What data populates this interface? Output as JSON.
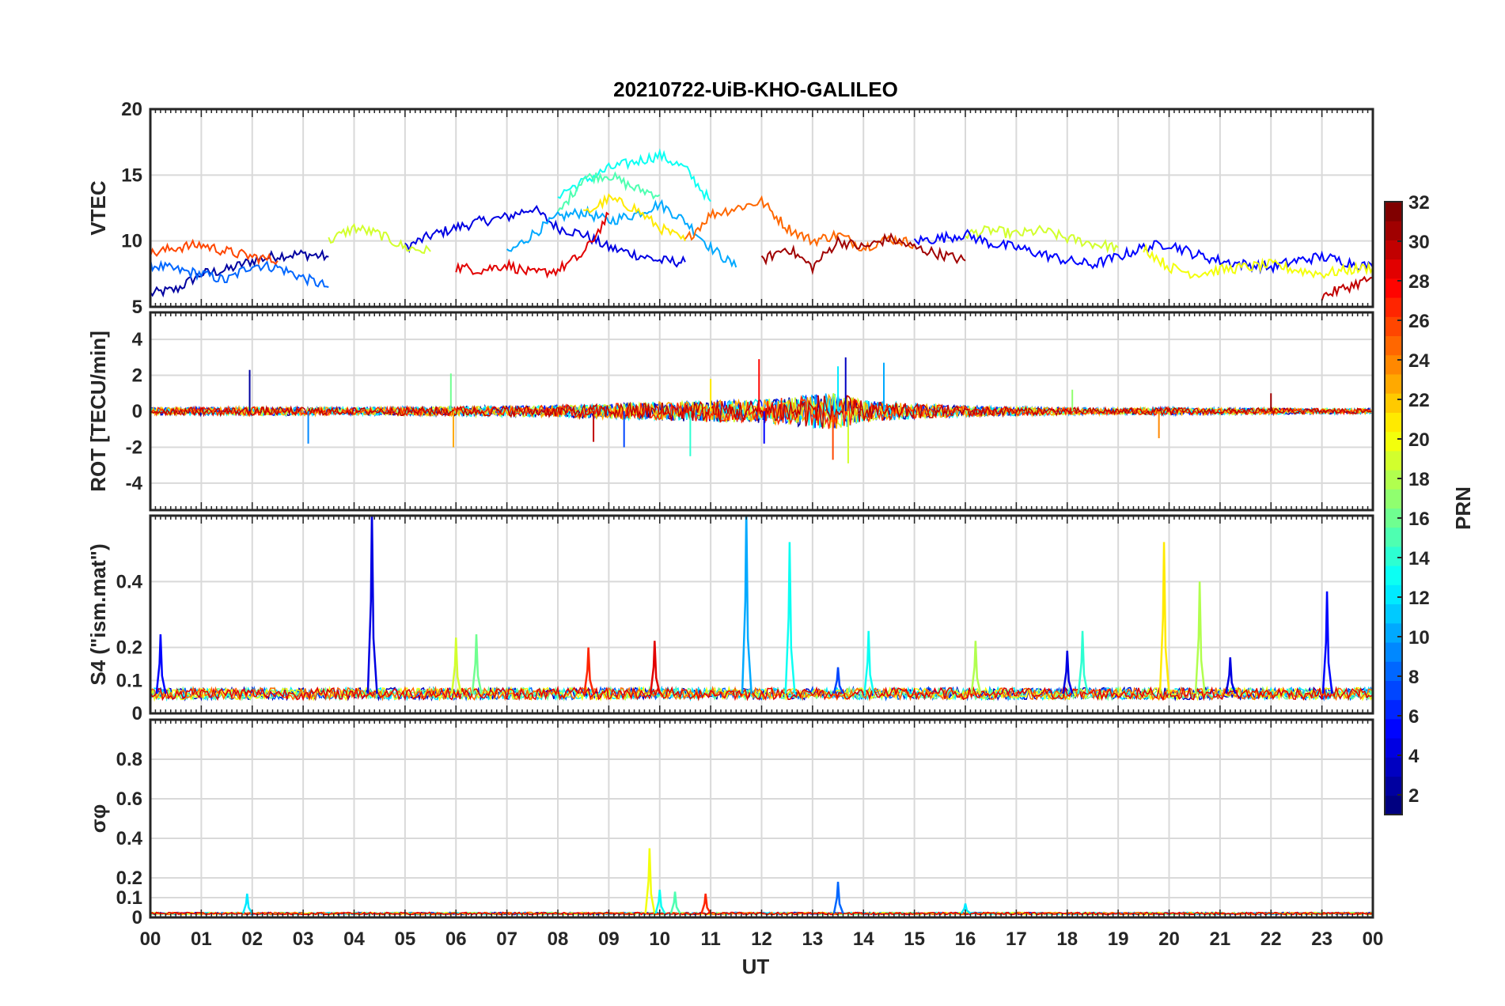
{
  "title": "20210722-UiB-KHO-GALILEO",
  "xlabel": "UT",
  "x_ticks": [
    "00",
    "01",
    "02",
    "03",
    "04",
    "05",
    "06",
    "07",
    "08",
    "09",
    "10",
    "11",
    "12",
    "13",
    "14",
    "15",
    "16",
    "17",
    "18",
    "19",
    "20",
    "21",
    "22",
    "23",
    "00"
  ],
  "colorbar": {
    "label": "PRN",
    "range": [
      1,
      32
    ],
    "ticks": [
      "2",
      "4",
      "6",
      "8",
      "10",
      "12",
      "14",
      "16",
      "18",
      "20",
      "22",
      "24",
      "26",
      "28",
      "30",
      "32"
    ],
    "colormap": "jet"
  },
  "chart_data": [
    {
      "type": "line",
      "panel": "VTEC",
      "ylabel": "VTEC",
      "ylim": [
        5,
        20
      ],
      "yticks": [
        "5",
        "10",
        "15",
        "20"
      ],
      "x_unit": "hours UT",
      "series": [
        {
          "prn": 2,
          "x": [
            0,
            0.5,
            1,
            1.5,
            2,
            2.5,
            3,
            3.5
          ],
          "y": [
            6.0,
            6.3,
            7.5,
            7.8,
            8.5,
            8.9,
            9.0,
            8.8
          ]
        },
        {
          "prn": 4,
          "x": [
            5,
            5.5,
            6,
            6.5,
            7,
            7.5,
            8,
            8.5,
            9,
            9.5,
            10,
            10.5
          ],
          "y": [
            9.5,
            10.4,
            11.0,
            11.5,
            11.8,
            12.5,
            11.0,
            10.5,
            9.5,
            9.0,
            8.5,
            8.4
          ]
        },
        {
          "prn": 8,
          "x": [
            0,
            0.5,
            1,
            1.5,
            2,
            2.5,
            3,
            3.5
          ],
          "y": [
            8.2,
            7.8,
            7.5,
            7.0,
            8.2,
            8.0,
            7.2,
            6.5
          ]
        },
        {
          "prn": 10,
          "x": [
            7,
            7.5,
            8,
            8.5,
            9,
            9.5,
            10,
            10.5,
            11,
            11.5
          ],
          "y": [
            9.0,
            10.5,
            11.8,
            12.2,
            11.5,
            12.0,
            12.8,
            11.5,
            9.5,
            8.0
          ]
        },
        {
          "prn": 13,
          "x": [
            8,
            8.5,
            9,
            9.5,
            10,
            10.5,
            11
          ],
          "y": [
            13.5,
            14.5,
            15.5,
            16.0,
            16.5,
            15.5,
            13.0
          ]
        },
        {
          "prn": 15,
          "x": [
            8,
            8.5,
            9,
            9.5,
            10
          ],
          "y": [
            12.0,
            14.8,
            15.0,
            14.0,
            13.5
          ]
        },
        {
          "prn": 19,
          "x": [
            3.5,
            4,
            4.5,
            5,
            5.5
          ],
          "y": [
            10.0,
            11.0,
            10.5,
            9.5,
            9.2
          ]
        },
        {
          "prn": 19,
          "x": [
            16,
            16.5,
            17,
            17.5,
            18,
            18.5,
            19
          ],
          "y": [
            10.5,
            10.8,
            10.5,
            10.8,
            10.2,
            9.8,
            9.5
          ]
        },
        {
          "prn": 21,
          "x": [
            8.5,
            9,
            9.5,
            10,
            10.5
          ],
          "y": [
            12.0,
            13.2,
            12.5,
            11.0,
            10.0
          ]
        },
        {
          "prn": 25,
          "x": [
            10.5,
            11,
            11.5,
            12,
            12.5,
            13,
            13.5,
            14,
            14.5,
            15
          ],
          "y": [
            10.0,
            12.0,
            12.5,
            13.0,
            11.0,
            10.0,
            10.5,
            9.5,
            10.2,
            9.8
          ]
        },
        {
          "prn": 26,
          "x": [
            0,
            0.5,
            1,
            1.5,
            2,
            2.5
          ],
          "y": [
            9.0,
            9.5,
            9.7,
            9.2,
            8.8,
            8.5
          ]
        },
        {
          "prn": 29,
          "x": [
            6,
            6.5,
            7,
            7.5,
            8,
            8.5,
            9
          ],
          "y": [
            8.0,
            7.8,
            8.2,
            7.5,
            7.8,
            9.0,
            12.0
          ]
        },
        {
          "prn": 31,
          "x": [
            12,
            12.5,
            13,
            13.5,
            14,
            14.5,
            15,
            15.5,
            16
          ],
          "y": [
            8.5,
            9.5,
            8.0,
            10.0,
            9.5,
            10.2,
            9.5,
            9.0,
            8.5
          ]
        },
        {
          "prn": 5,
          "x": [
            15,
            15.5,
            16,
            16.5,
            17,
            17.5,
            18,
            18.5,
            19,
            19.5,
            20,
            20.5,
            21,
            21.5,
            22,
            22.5,
            23,
            23.5,
            24
          ],
          "y": [
            10.0,
            10.2,
            10.5,
            9.8,
            9.5,
            9.0,
            8.5,
            8.2,
            8.8,
            9.5,
            9.8,
            9.0,
            8.5,
            8.2,
            8.0,
            8.5,
            8.8,
            8.4,
            8.0
          ]
        },
        {
          "prn": 20,
          "x": [
            19.5,
            20,
            20.5,
            21,
            21.5,
            22,
            22.5,
            23,
            23.5,
            24
          ],
          "y": [
            9.5,
            8.0,
            7.5,
            7.8,
            8.0,
            8.2,
            7.8,
            7.5,
            7.8,
            8.0
          ]
        },
        {
          "prn": 30,
          "x": [
            23,
            23.5,
            24
          ],
          "y": [
            5.8,
            6.5,
            7.2
          ]
        }
      ]
    },
    {
      "type": "line",
      "panel": "ROT",
      "ylabel": "ROT [TECU/min]",
      "ylim": [
        -5.5,
        5.5
      ],
      "yticks": [
        "-4",
        "-2",
        "0",
        "2",
        "4"
      ],
      "x_unit": "hours UT",
      "noise_profile": {
        "x": [
          0,
          2,
          4,
          6,
          8,
          9,
          10,
          11,
          12,
          12.5,
          13,
          13.5,
          14,
          15,
          16,
          17,
          18,
          19,
          20,
          21,
          22,
          23,
          24
        ],
        "amplitude": [
          0.35,
          0.4,
          0.35,
          0.45,
          0.55,
          0.7,
          0.9,
          1.0,
          1.1,
          1.3,
          1.6,
          1.7,
          1.0,
          0.7,
          0.5,
          0.4,
          0.35,
          0.3,
          0.35,
          0.3,
          0.3,
          0.25,
          0.25
        ]
      },
      "spikes": [
        {
          "x": 1.95,
          "y": 2.3
        },
        {
          "x": 3.1,
          "y": -1.8
        },
        {
          "x": 5.9,
          "y": 2.1
        },
        {
          "x": 5.95,
          "y": -2.0
        },
        {
          "x": 8.7,
          "y": -1.7
        },
        {
          "x": 9.3,
          "y": -2.0
        },
        {
          "x": 10.6,
          "y": -2.5
        },
        {
          "x": 11.0,
          "y": 1.8
        },
        {
          "x": 11.95,
          "y": 2.9
        },
        {
          "x": 12.05,
          "y": -1.8
        },
        {
          "x": 13.5,
          "y": 2.5
        },
        {
          "x": 13.7,
          "y": -2.9
        },
        {
          "x": 13.4,
          "y": -2.7
        },
        {
          "x": 13.65,
          "y": 3.0
        },
        {
          "x": 14.4,
          "y": 2.7
        },
        {
          "x": 18.1,
          "y": 1.2
        },
        {
          "x": 19.8,
          "y": -1.5
        },
        {
          "x": 22.0,
          "y": 1.0
        }
      ]
    },
    {
      "type": "line",
      "panel": "S4",
      "ylabel": "S4 (\"ism.mat\")",
      "ylim": [
        0,
        0.6
      ],
      "yticks": [
        "0",
        "0.1",
        "0.2",
        "0.4"
      ],
      "x_unit": "hours UT",
      "baseline": 0.06,
      "spikes": [
        {
          "x": 0.2,
          "y": 0.24,
          "prn": 5
        },
        {
          "x": 4.35,
          "y": 0.62,
          "prn": 4
        },
        {
          "x": 6.0,
          "y": 0.23,
          "prn": 19
        },
        {
          "x": 6.4,
          "y": 0.24,
          "prn": 16
        },
        {
          "x": 8.6,
          "y": 0.2,
          "prn": 27
        },
        {
          "x": 9.9,
          "y": 0.22,
          "prn": 29
        },
        {
          "x": 11.7,
          "y": 0.62,
          "prn": 10
        },
        {
          "x": 12.55,
          "y": 0.52,
          "prn": 13
        },
        {
          "x": 13.5,
          "y": 0.14,
          "prn": 7
        },
        {
          "x": 14.1,
          "y": 0.25,
          "prn": 13
        },
        {
          "x": 16.2,
          "y": 0.22,
          "prn": 18
        },
        {
          "x": 18.3,
          "y": 0.25,
          "prn": 14
        },
        {
          "x": 19.9,
          "y": 0.52,
          "prn": 21
        },
        {
          "x": 20.6,
          "y": 0.4,
          "prn": 18
        },
        {
          "x": 23.1,
          "y": 0.37,
          "prn": 5
        },
        {
          "x": 18.0,
          "y": 0.19,
          "prn": 4
        },
        {
          "x": 21.2,
          "y": 0.17,
          "prn": 4
        }
      ]
    },
    {
      "type": "line",
      "panel": "sigma_phi",
      "ylabel": "σφ",
      "ylim": [
        0,
        1
      ],
      "yticks": [
        "0",
        "0.1",
        "0.2",
        "0.4",
        "0.6",
        "0.8"
      ],
      "x_unit": "hours UT",
      "baseline": 0.02,
      "spikes": [
        {
          "x": 1.9,
          "y": 0.12,
          "prn": 12
        },
        {
          "x": 9.8,
          "y": 0.35,
          "prn": 20
        },
        {
          "x": 10.0,
          "y": 0.14,
          "prn": 13
        },
        {
          "x": 10.3,
          "y": 0.13,
          "prn": 15
        },
        {
          "x": 10.9,
          "y": 0.12,
          "prn": 27
        },
        {
          "x": 13.5,
          "y": 0.18,
          "prn": 8
        },
        {
          "x": 16.0,
          "y": 0.07,
          "prn": 12
        }
      ]
    }
  ]
}
